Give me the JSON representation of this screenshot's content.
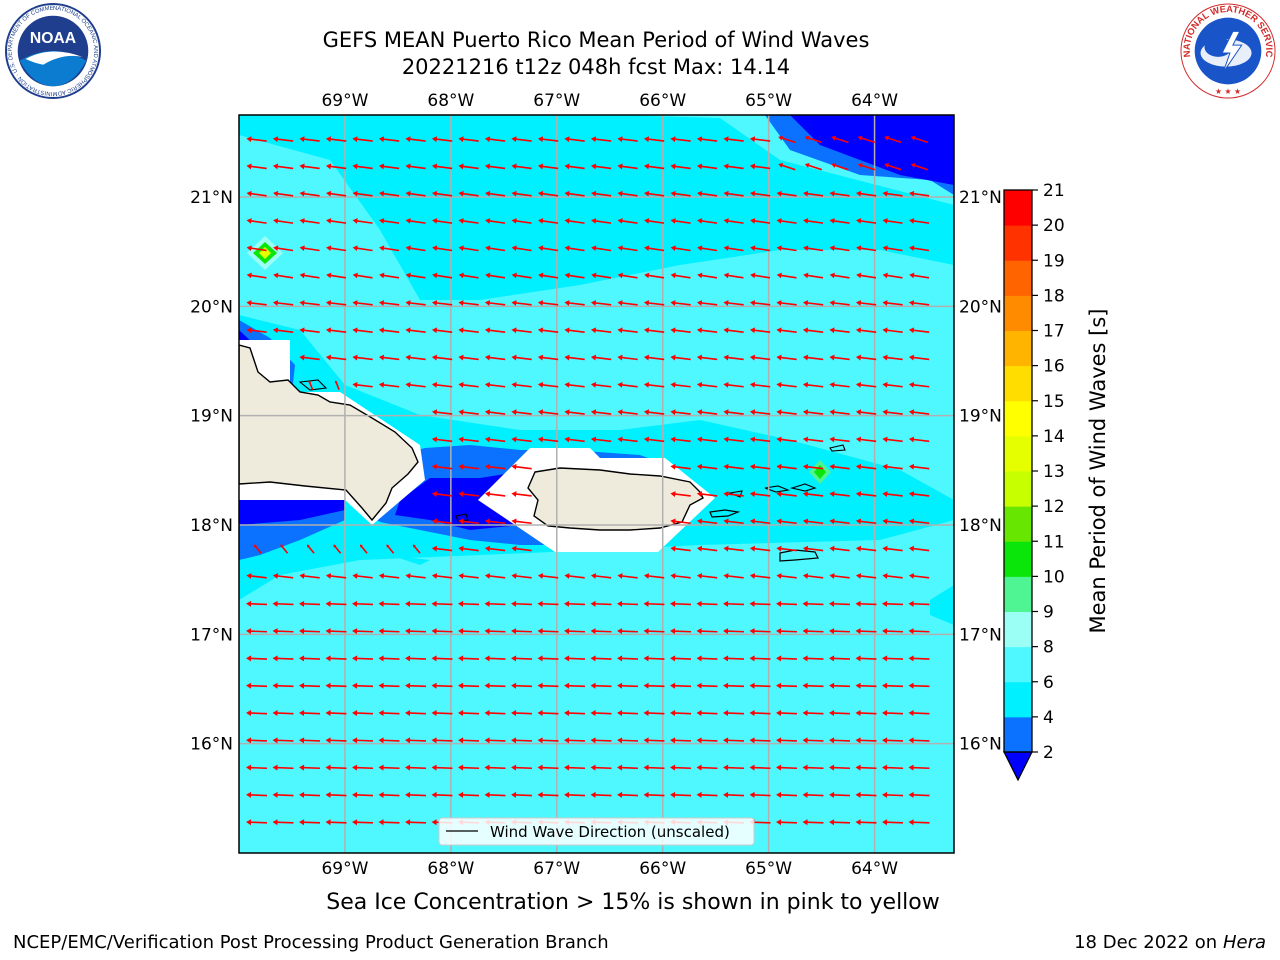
{
  "header": {
    "title_line1": "GEFS MEAN Puerto Rico Mean Period of Wind Waves",
    "title_line2": "20221216 t12z 048h fcst    Max: 14.14"
  },
  "logos": {
    "left": "noaa-logo",
    "left_text": "NOAA",
    "left_ring_text": "NATIONAL OCEANIC AND ATMOSPHERIC ADMINISTRATION · U.S. DEPARTMENT OF COMMERCE",
    "right": "national-weather-service-logo",
    "right_ring_text": "NATIONAL WEATHER SERVICE"
  },
  "map": {
    "lon_ticks": [
      "69°W",
      "68°W",
      "67°W",
      "66°W",
      "65°W",
      "64°W"
    ],
    "lat_ticks": [
      "21°N",
      "20°N",
      "19°N",
      "18°N",
      "17°N",
      "16°N"
    ],
    "lon_values": [
      -69,
      -68,
      -67,
      -66,
      -65,
      -64
    ],
    "lat_values": [
      21,
      20,
      19,
      18,
      17,
      16
    ],
    "extent": {
      "lon_min": -70,
      "lon_max": -63.25,
      "lat_min": 15,
      "lat_max": 21.75
    },
    "legend_label": "Wind Wave Direction (unscaled)",
    "arrow_color": "#ff0000",
    "land_color": "#efebdc"
  },
  "colorbar": {
    "title": "Mean Period of Wind Waves [s]",
    "levels": [
      2,
      4,
      6,
      8,
      9,
      10,
      11,
      12,
      13,
      14,
      15,
      16,
      17,
      18,
      19,
      20,
      21
    ],
    "labels": [
      "2",
      "4",
      "6",
      "8",
      "9",
      "10",
      "11",
      "12",
      "13",
      "14",
      "15",
      "16",
      "17",
      "18",
      "19",
      "20",
      "21"
    ],
    "colors": [
      "#0a72ff",
      "#00f0ff",
      "#4ff8ff",
      "#9cfff5",
      "#4ff592",
      "#0ae60a",
      "#66e600",
      "#c8ff00",
      "#e5ff00",
      "#ffff00",
      "#ffdd00",
      "#ffb400",
      "#ff8c00",
      "#ff6400",
      "#ff3200",
      "#ff0000"
    ],
    "under_color": "#0000ff"
  },
  "caption": "Sea Ice Concentration > 15% is shown in pink to yellow",
  "footer": {
    "left": "NCEP/EMC/Verification Post Processing Product Generation Branch",
    "right_prefix": "18 Dec 2022 on",
    "right_host": "Hera"
  }
}
